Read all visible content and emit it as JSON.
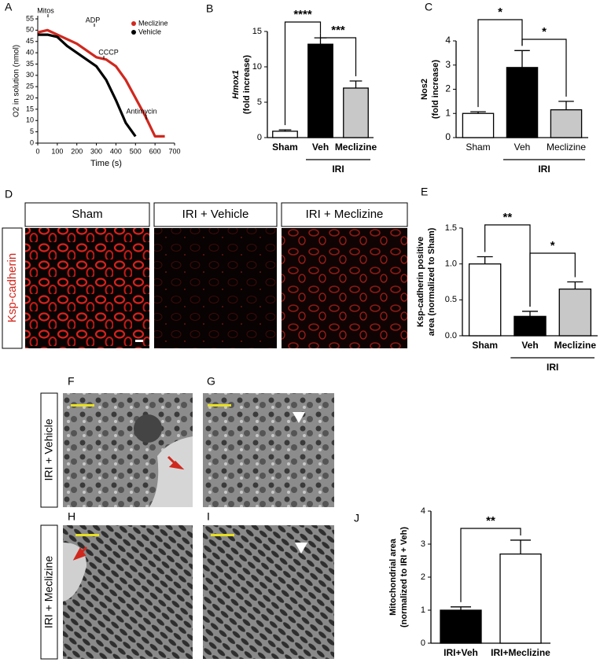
{
  "panel_letters": [
    "A",
    "B",
    "C",
    "D",
    "E",
    "F",
    "G",
    "H",
    "I",
    "J"
  ],
  "chart_data": [
    {
      "type": "line",
      "xlabel": "Time (s)",
      "ylabel": [
        "O2 in solution (nmol)"
      ],
      "x": [
        0,
        50,
        100,
        150,
        200,
        250,
        300,
        350,
        400,
        450,
        500,
        550,
        600,
        650
      ],
      "series": [
        {
          "name": "Meclizine",
          "color": "#d0281e",
          "values": [
            49,
            50,
            48,
            46,
            44,
            41,
            38,
            37,
            34,
            28,
            20,
            12,
            3,
            3
          ]
        },
        {
          "name": "Vehicle",
          "color": "#000000",
          "values": [
            48,
            48,
            47,
            43,
            40,
            37,
            34,
            28,
            19,
            9,
            3,
            null,
            null,
            null
          ]
        }
      ],
      "annotations": [
        "Mitos",
        "ADP",
        "CCCP",
        "Antimycin"
      ],
      "xlim": [
        0,
        700
      ],
      "xticks": [
        0,
        100,
        200,
        300,
        400,
        500,
        600,
        700
      ],
      "ylim": [
        0,
        55
      ],
      "yticks": [
        0,
        5,
        10,
        15,
        20,
        25,
        30,
        35,
        40,
        45,
        50,
        55
      ],
      "legend": "upper right"
    },
    {
      "type": "bar",
      "ylabel": [
        "Hmox1",
        "(fold increase)"
      ],
      "ylabel_italic": true,
      "categories": [
        "Sham",
        "Veh",
        "Meclizine"
      ],
      "values": [
        0.9,
        13.2,
        7.0
      ],
      "errors": [
        0.2,
        0.9,
        1.0
      ],
      "colors": [
        "#ffffff",
        "#000000",
        "#c8c8c8"
      ],
      "group_label": "IRI",
      "significance": [
        "****",
        "***"
      ],
      "ylim": [
        0,
        15
      ],
      "yticks": [
        0,
        5,
        10,
        15
      ]
    },
    {
      "type": "bar",
      "ylabel": [
        "Nos2",
        "(fold increase)"
      ],
      "categories": [
        "Sham",
        "Veh",
        "Meclizine"
      ],
      "values": [
        1.0,
        2.9,
        1.15
      ],
      "errors": [
        0.07,
        0.7,
        0.35
      ],
      "colors": [
        "#ffffff",
        "#000000",
        "#c8c8c8"
      ],
      "group_label": "IRI",
      "significance": [
        "*",
        "*"
      ],
      "ylim": [
        0,
        4
      ],
      "yticks": [
        0,
        1,
        2,
        3,
        4
      ]
    },
    {
      "type": "bar",
      "ylabel": [
        "Ksp-cadherin positive",
        "area (normalized to Sham)"
      ],
      "categories": [
        "Sham",
        "Veh",
        "Meclizine"
      ],
      "values": [
        1.0,
        0.27,
        0.65
      ],
      "errors": [
        0.1,
        0.07,
        0.1
      ],
      "colors": [
        "#ffffff",
        "#000000",
        "#c8c8c8"
      ],
      "group_label": "IRI",
      "significance": [
        "**",
        "*"
      ],
      "ylim": [
        0,
        1.5
      ],
      "yticks": [
        {
          "value": 0,
          "label": "0.0"
        },
        0.5,
        {
          "value": 1,
          "label": "1.0"
        },
        1.5
      ]
    },
    {
      "type": "bar",
      "ylabel": [
        "Mitochondrial area",
        "(normalized to IRI + Veh)"
      ],
      "categories": [
        "IRI+Veh",
        "IRI+Meclizine"
      ],
      "values": [
        1.0,
        2.7
      ],
      "errors": [
        0.1,
        0.42
      ],
      "colors": [
        "#000000",
        "#ffffff"
      ],
      "significance": [
        "**"
      ],
      "ylim": [
        0,
        4
      ],
      "yticks": [
        0,
        1,
        2,
        3,
        4
      ]
    }
  ],
  "images": {
    "headers": [
      "Sham",
      "IRI + Vehicle",
      "IRI + Meclizine"
    ],
    "stain": "Ksp-cadherin",
    "rows": [
      "IRI + Vehicle",
      "IRI + Meclizine"
    ]
  }
}
